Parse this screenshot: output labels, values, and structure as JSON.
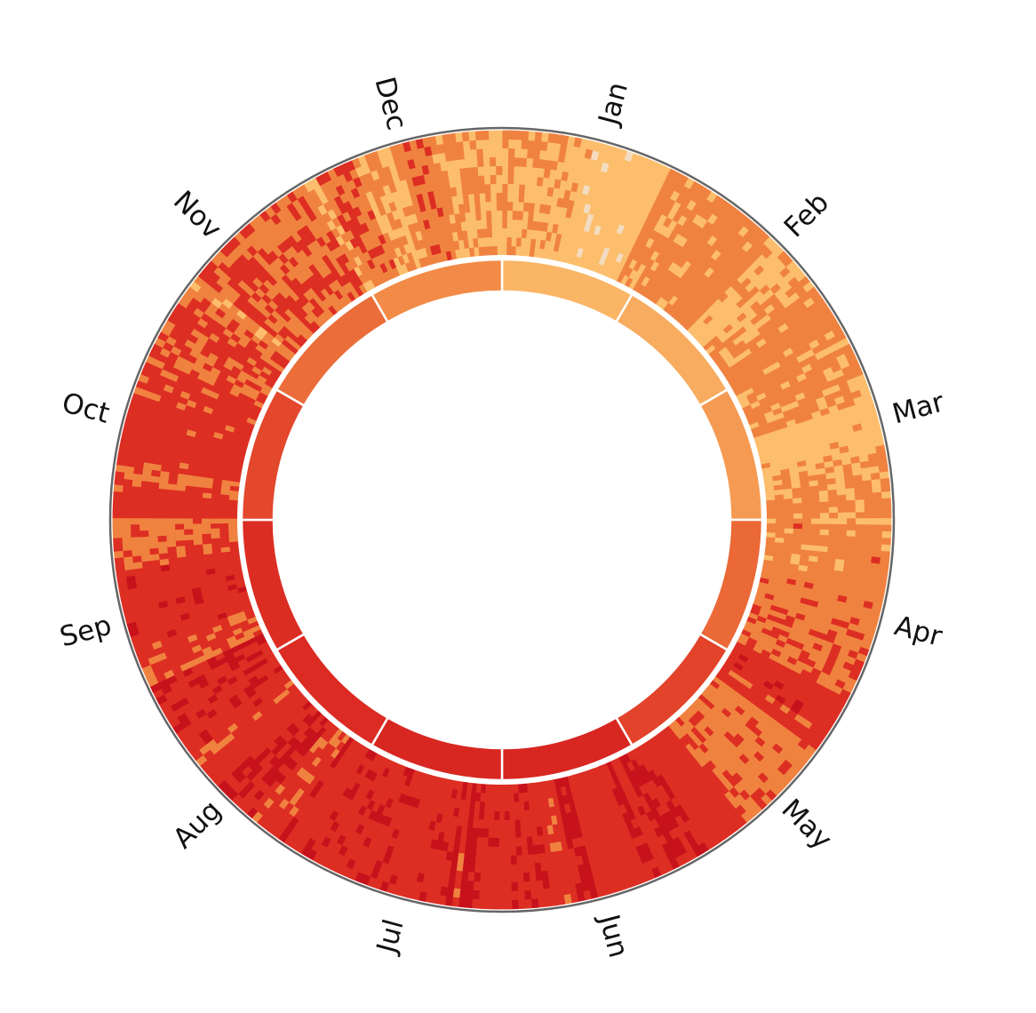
{
  "chart_data": {
    "type": "heatmap",
    "layout": "radial",
    "title": "",
    "months": [
      "Jan",
      "Feb",
      "Mar",
      "Apr",
      "May",
      "Jun",
      "Jul",
      "Aug",
      "Sep",
      "Oct",
      "Nov",
      "Dec"
    ],
    "color_scale": [
      "#f3dcc0",
      "#fcbe6c",
      "#f08240",
      "#dd2e23",
      "#c8121b"
    ],
    "month_average_levels": [
      1.15,
      1.3,
      1.6,
      2.3,
      2.75,
      3.25,
      3.25,
      3.1,
      3.05,
      2.7,
      2.25,
      1.85
    ],
    "outer_ring_levels_by_month": [
      {
        "month": "Jan",
        "dominant_levels": [
          1,
          2
        ]
      },
      {
        "month": "Feb",
        "dominant_levels": [
          1,
          2,
          3
        ]
      },
      {
        "month": "Mar",
        "dominant_levels": [
          2,
          3
        ]
      },
      {
        "month": "Apr",
        "dominant_levels": [
          2,
          3,
          4
        ]
      },
      {
        "month": "May",
        "dominant_levels": [
          3,
          4
        ]
      },
      {
        "month": "Jun",
        "dominant_levels": [
          3,
          4
        ]
      },
      {
        "month": "Jul",
        "dominant_levels": [
          3,
          4
        ]
      },
      {
        "month": "Aug",
        "dominant_levels": [
          3,
          4
        ]
      },
      {
        "month": "Sep",
        "dominant_levels": [
          3,
          4
        ]
      },
      {
        "month": "Oct",
        "dominant_levels": [
          3,
          4
        ]
      },
      {
        "month": "Nov",
        "dominant_levels": [
          2,
          3
        ]
      },
      {
        "month": "Dec",
        "dominant_levels": [
          1,
          2
        ]
      }
    ],
    "start_angle_month": "Jan",
    "direction": "clockwise",
    "legend": "none",
    "grid": false
  }
}
